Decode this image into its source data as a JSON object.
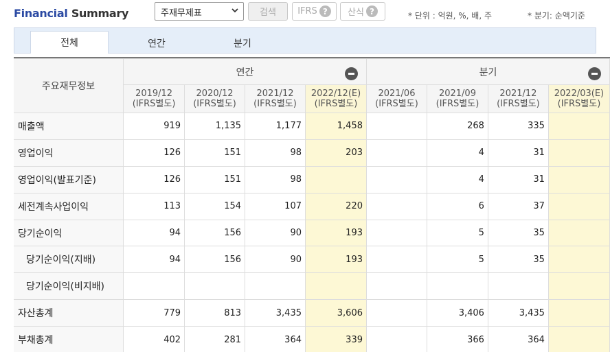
{
  "header": {
    "title_part1": "Financial",
    "title_part2": "Summary",
    "select_value": "주재무제표",
    "search_label": "검색",
    "ifrs_label": "IFRS",
    "calc_label": "산식",
    "help_glyph": "?",
    "unit_note": "* 단위 : 억원, %, 배, 주",
    "period_note": "* 분기: 순액기준"
  },
  "tabs": [
    "전체",
    "연간",
    "분기"
  ],
  "table": {
    "row_header": "주요재무정보",
    "group_annual": "연간",
    "group_quarter": "분기",
    "columns": [
      {
        "date": "2019/12",
        "basis": "(IFRS별도)"
      },
      {
        "date": "2020/12",
        "basis": "(IFRS별도)"
      },
      {
        "date": "2021/12",
        "basis": "(IFRS별도)"
      },
      {
        "date": "2022/12(E)",
        "basis": "(IFRS별도)"
      },
      {
        "date": "2021/06",
        "basis": "(IFRS별도)"
      },
      {
        "date": "2021/09",
        "basis": "(IFRS별도)"
      },
      {
        "date": "2021/12",
        "basis": "(IFRS별도)"
      },
      {
        "date": "2022/03(E)",
        "basis": "(IFRS별도)"
      }
    ],
    "rows": [
      {
        "label": "매출액",
        "values": [
          "919",
          "1,135",
          "1,177",
          "1,458",
          "",
          "268",
          "335",
          ""
        ]
      },
      {
        "label": "영업이익",
        "values": [
          "126",
          "151",
          "98",
          "203",
          "",
          "4",
          "31",
          ""
        ]
      },
      {
        "label": "영업이익(발표기준)",
        "values": [
          "126",
          "151",
          "98",
          "",
          "",
          "4",
          "31",
          ""
        ]
      },
      {
        "label": "세전계속사업이익",
        "values": [
          "113",
          "154",
          "107",
          "220",
          "",
          "6",
          "37",
          ""
        ]
      },
      {
        "label": "당기순이익",
        "values": [
          "94",
          "156",
          "90",
          "193",
          "",
          "5",
          "35",
          ""
        ]
      },
      {
        "label": "당기순이익(지배)",
        "values": [
          "94",
          "156",
          "90",
          "193",
          "",
          "5",
          "35",
          ""
        ]
      },
      {
        "label": "당기순이익(비지배)",
        "values": [
          "",
          "",
          "",
          "",
          "",
          "",
          "",
          ""
        ]
      },
      {
        "label": "자산총계",
        "values": [
          "779",
          "813",
          "3,435",
          "3,606",
          "",
          "3,406",
          "3,435",
          ""
        ]
      },
      {
        "label": "부채총계",
        "values": [
          "402",
          "281",
          "364",
          "339",
          "",
          "366",
          "364",
          ""
        ]
      }
    ]
  }
}
